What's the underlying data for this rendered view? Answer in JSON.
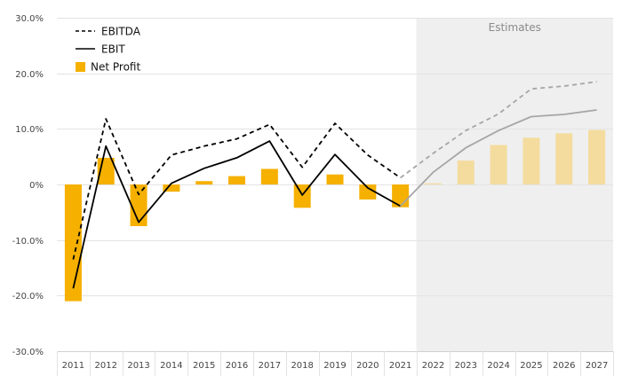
{
  "chart_data": {
    "type": "bar+line",
    "categories": [
      "2011",
      "2012",
      "2013",
      "2014",
      "2015",
      "2016",
      "2017",
      "2018",
      "2019",
      "2020",
      "2021",
      "2022",
      "2023",
      "2024",
      "2025",
      "2026",
      "2027"
    ],
    "estimate_start": "2022",
    "estimate_label": "Estimates",
    "ylim": [
      -30,
      30
    ],
    "y_ticks": [
      -30,
      -20,
      -10,
      0,
      10,
      20,
      30
    ],
    "y_tick_labels": [
      "-30.0%",
      "-20.0%",
      "-10.0%",
      "0%",
      "10.0%",
      "20.0%",
      "30.0%"
    ],
    "legend_position": "top-left",
    "series": [
      {
        "name": "EBITDA",
        "kind": "line",
        "style": "dashed",
        "color": "#000000",
        "estimate_color": "#a6a6a6",
        "values": [
          -13.5,
          11.8,
          -1.8,
          5.3,
          6.9,
          8.2,
          10.8,
          3.1,
          11.0,
          5.3,
          1.2,
          5.6,
          9.7,
          12.7,
          17.2,
          17.7,
          18.5
        ]
      },
      {
        "name": "EBIT",
        "kind": "line",
        "style": "solid",
        "color": "#000000",
        "estimate_color": "#a6a6a6",
        "values": [
          -18.7,
          6.9,
          -6.8,
          0.2,
          2.9,
          4.8,
          7.8,
          -1.9,
          5.4,
          -0.6,
          -3.9,
          2.2,
          6.6,
          9.7,
          12.2,
          12.6,
          13.4
        ]
      },
      {
        "name": "Net Profit",
        "kind": "bar",
        "color": "#f5b000",
        "estimate_color": "#f4dc9e",
        "values": [
          -21.0,
          4.8,
          -7.5,
          -1.3,
          0.6,
          1.5,
          2.8,
          -4.2,
          1.8,
          -2.7,
          -4.1,
          0.2,
          4.3,
          7.1,
          8.4,
          9.2,
          9.8
        ]
      }
    ]
  }
}
